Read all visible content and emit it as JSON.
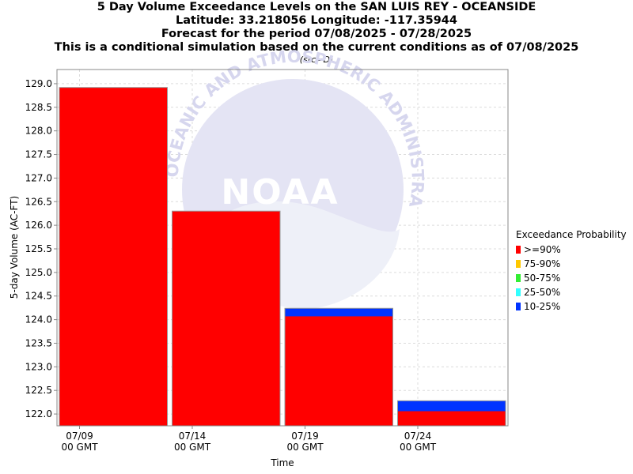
{
  "header": {
    "title_lines": [
      "5 Day Volume Exceedance Levels on the SAN LUIS REY - OCEANSIDE",
      "Latitude: 33.218056 Longitude: -117.35944",
      "Forecast for the period 07/08/2025 - 07/28/2025",
      "This is a conditional simulation based on the current conditions as of 07/08/2025"
    ],
    "source_note": "(src=D)"
  },
  "watermark": {
    "icon": "noaa-logo-icon",
    "logo_text": "NOAA",
    "ring_text": "OCEANIC AND ATMOSPHERIC ADMINISTRATION"
  },
  "legend": {
    "title": "Exceedance Probability",
    "items": [
      {
        "label": ">=90%",
        "color": "#ff0000"
      },
      {
        "label": "75-90%",
        "color": "#ffc800"
      },
      {
        "label": "50-75%",
        "color": "#33ee33"
      },
      {
        "label": "25-50%",
        "color": "#33ffff"
      },
      {
        "label": "10-25%",
        "color": "#0033ff"
      }
    ]
  },
  "chart_data": {
    "type": "bar",
    "stacked": true,
    "xlabel": "Time",
    "ylabel": "5-day Volume (AC-FT)",
    "ylim": [
      121.75,
      129.3
    ],
    "yticks": [
      122.0,
      122.5,
      123.0,
      123.5,
      124.0,
      124.5,
      125.0,
      125.5,
      126.0,
      126.5,
      127.0,
      127.5,
      128.0,
      128.5,
      129.0
    ],
    "xlim": [
      "07/08/2025",
      "07/28/2025"
    ],
    "xticks": [
      {
        "date": "07/09/2025",
        "label": [
          "07/09",
          "00 GMT"
        ]
      },
      {
        "date": "07/14/2025",
        "label": [
          "07/14",
          "00 GMT"
        ]
      },
      {
        "date": "07/19/2025",
        "label": [
          "07/19",
          "00 GMT"
        ]
      },
      {
        "date": "07/24/2025",
        "label": [
          "07/24",
          "00 GMT"
        ]
      }
    ],
    "bars": [
      {
        "start": "07/08/2025",
        "end": "07/13/2025",
        "levels": [
          {
            "series": ">=90%",
            "value": 128.92
          }
        ]
      },
      {
        "start": "07/13/2025",
        "end": "07/18/2025",
        "levels": [
          {
            "series": ">=90%",
            "value": 126.3
          }
        ]
      },
      {
        "start": "07/18/2025",
        "end": "07/23/2025",
        "levels": [
          {
            "series": ">=90%",
            "value": 124.07
          },
          {
            "series": "10-25%",
            "value": 124.24
          }
        ]
      },
      {
        "start": "07/23/2025",
        "end": "07/28/2025",
        "levels": [
          {
            "series": ">=90%",
            "value": 122.06
          },
          {
            "series": "10-25%",
            "value": 122.28
          }
        ]
      }
    ],
    "grid": true,
    "legend_position": "right"
  }
}
